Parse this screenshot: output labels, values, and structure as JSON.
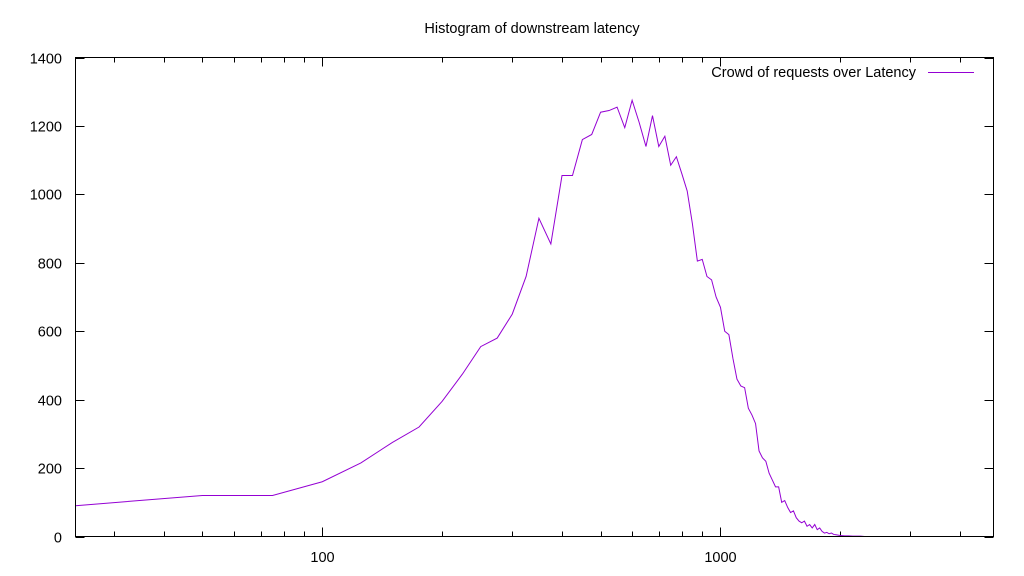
{
  "chart_data": {
    "type": "line",
    "title": "Histogram of downstream latency",
    "xlabel": "",
    "ylabel": "",
    "x_scale": "log",
    "xlim": [
      24,
      4850
    ],
    "ylim": [
      0,
      1400
    ],
    "x_ticks": [
      100,
      1000
    ],
    "x_tick_labels": [
      "100",
      "1000"
    ],
    "y_ticks": [
      0,
      200,
      400,
      600,
      800,
      1000,
      1200,
      1400
    ],
    "y_tick_labels": [
      "0",
      "200",
      "400",
      "600",
      "800",
      "1000",
      "1200",
      "1400"
    ],
    "grid": false,
    "legend_position": "top-right",
    "series": [
      {
        "name": "Crowd of requests over Latency",
        "color": "#9400d3",
        "x": [
          24,
          50,
          75,
          100,
          125,
          150,
          175,
          200,
          225,
          250,
          275,
          300,
          325,
          350,
          375,
          400,
          425,
          450,
          475,
          500,
          525,
          550,
          575,
          600,
          625,
          650,
          675,
          700,
          725,
          750,
          775,
          800,
          825,
          850,
          875,
          900,
          925,
          950,
          975,
          1000,
          1025,
          1050,
          1075,
          1100,
          1125,
          1150,
          1175,
          1200,
          1225,
          1250,
          1275,
          1300,
          1325,
          1350,
          1375,
          1400,
          1425,
          1450,
          1475,
          1500,
          1525,
          1550,
          1575,
          1600,
          1625,
          1650,
          1675,
          1700,
          1725,
          1750,
          1775,
          1800,
          1825,
          1850,
          1875,
          1900,
          1925,
          1950,
          1975,
          2000,
          2050,
          2100,
          2150,
          2200,
          2250,
          2300,
          2350,
          2400,
          2450,
          2500,
          2550,
          2600,
          2650,
          2700
        ],
        "values": [
          90,
          120,
          120,
          160,
          215,
          275,
          320,
          395,
          475,
          555,
          580,
          650,
          760,
          930,
          855,
          1055,
          1055,
          1160,
          1175,
          1240,
          1245,
          1255,
          1195,
          1275,
          1210,
          1140,
          1230,
          1140,
          1170,
          1085,
          1110,
          1060,
          1010,
          915,
          805,
          810,
          760,
          750,
          700,
          670,
          600,
          590,
          520,
          460,
          440,
          435,
          375,
          355,
          330,
          250,
          230,
          220,
          185,
          165,
          145,
          145,
          100,
          105,
          85,
          70,
          75,
          55,
          45,
          40,
          45,
          30,
          35,
          25,
          35,
          20,
          25,
          15,
          10,
          12,
          8,
          10,
          6,
          5,
          4,
          3,
          2,
          2,
          1,
          1,
          1,
          0,
          0,
          0,
          0,
          0,
          0,
          0,
          0,
          0
        ]
      }
    ]
  }
}
